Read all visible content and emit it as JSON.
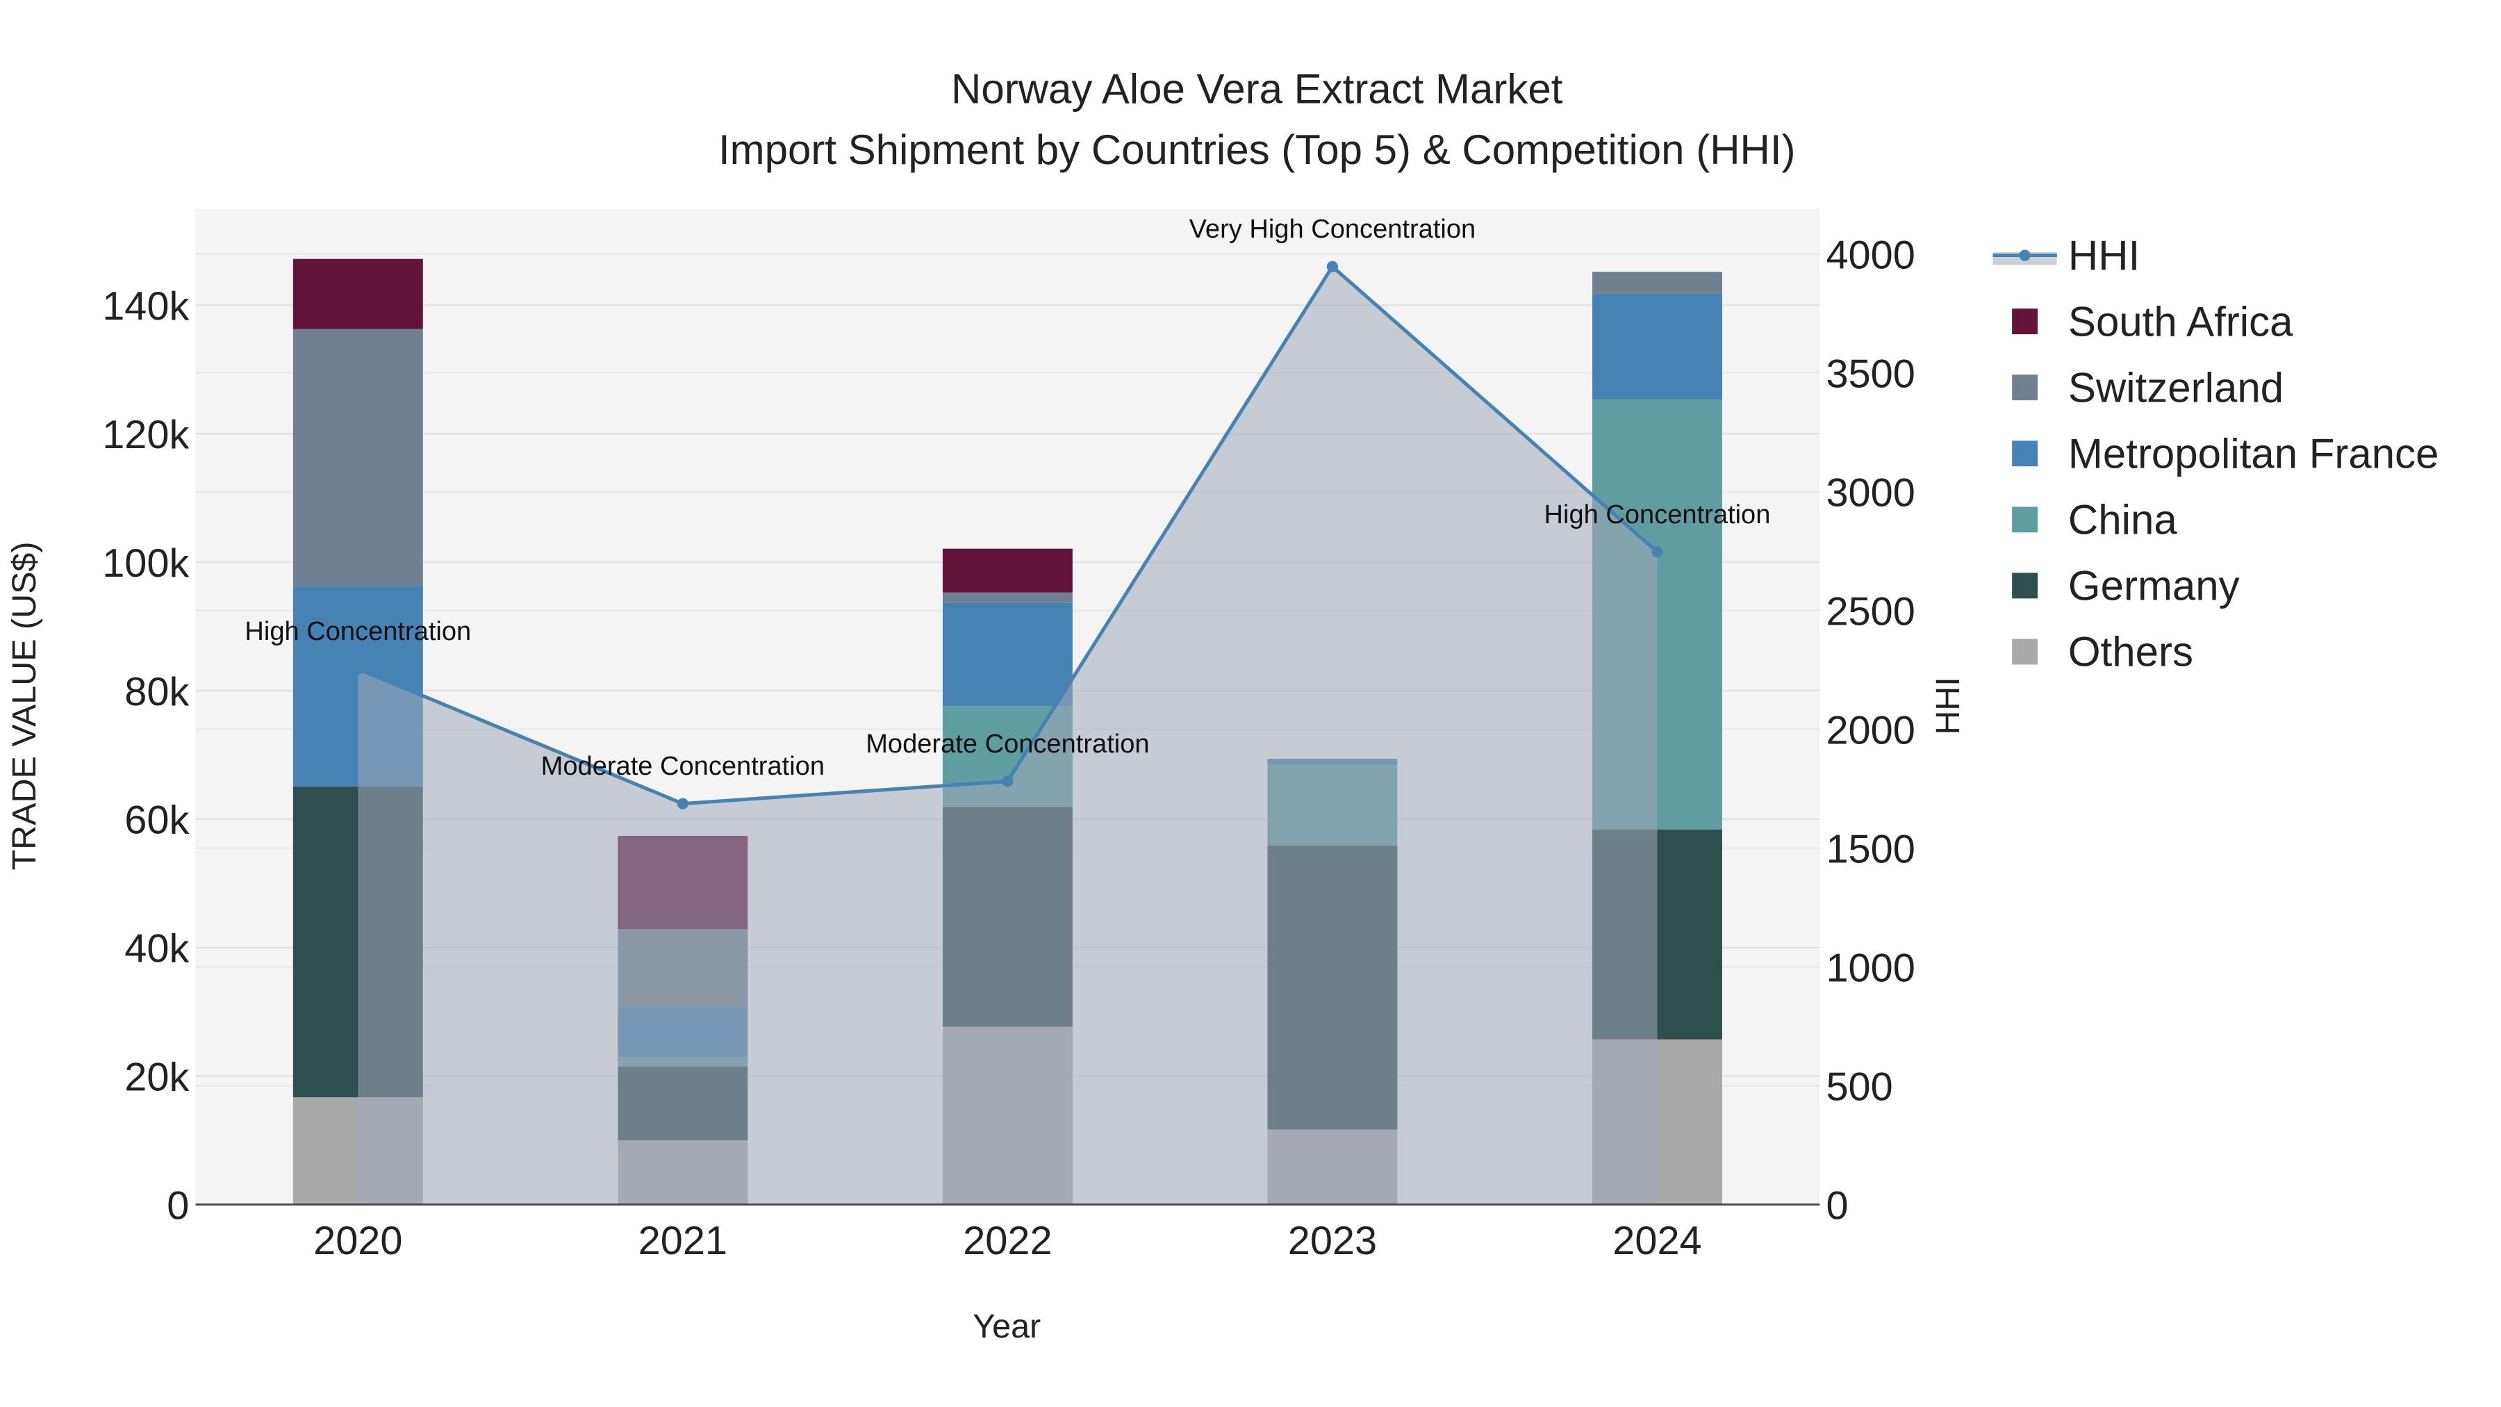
{
  "chart_data": {
    "type": "bar",
    "title": "Norway Aloe Vera Extract Market",
    "subtitle": "Import Shipment by Countries (Top 5) & Competition (HHI)",
    "xlabel": "Year",
    "ylabel": "TRADE VALUE (US$)",
    "y2label": "HHI",
    "categories": [
      "2020",
      "2021",
      "2022",
      "2023",
      "2024"
    ],
    "ylim": [
      0,
      155000
    ],
    "y2lim": [
      0,
      4190
    ],
    "yticks": [
      0,
      20000,
      40000,
      60000,
      80000,
      100000,
      120000,
      140000
    ],
    "ytick_labels": [
      "0",
      "20k",
      "40k",
      "60k",
      "80k",
      "100k",
      "120k",
      "140k"
    ],
    "y2ticks": [
      0,
      500,
      1000,
      1500,
      2000,
      2500,
      3000,
      3500,
      4000
    ],
    "y2tick_labels": [
      "0",
      "500",
      "1000",
      "1500",
      "2000",
      "2500",
      "3000",
      "3500",
      "4000"
    ],
    "stacked": true,
    "series": [
      {
        "name": "Others",
        "color": "#a9a9a9",
        "values": [
          16700,
          10000,
          27700,
          11700,
          25700
        ]
      },
      {
        "name": "Germany",
        "color": "#2f4f4f",
        "values": [
          48400,
          11500,
          34200,
          44200,
          32700
        ]
      },
      {
        "name": "China",
        "color": "#5f9ea0",
        "values": [
          0,
          1500,
          15700,
          12500,
          66900
        ]
      },
      {
        "name": "Metropolitan France",
        "color": "#4682b4",
        "values": [
          31200,
          7700,
          16100,
          1000,
          16500
        ]
      },
      {
        "name": "Switzerland",
        "color": "#708090",
        "values": [
          40000,
          12200,
          1600,
          0,
          3400
        ]
      },
      {
        "name": "South Africa",
        "color": "#621538",
        "values": [
          10900,
          14500,
          6800,
          0,
          0
        ]
      }
    ],
    "line": {
      "name": "HHI",
      "color": "#4682b4",
      "axis": "right",
      "values": [
        2254,
        1687,
        1781,
        3947,
        2746
      ],
      "annotations": [
        "High Concentration",
        "Moderate Concentration",
        "Moderate Concentration",
        "Very High Concentration",
        "High Concentration"
      ]
    },
    "legend_order": [
      "HHI",
      "South Africa",
      "Switzerland",
      "Metropolitan France",
      "China",
      "Germany",
      "Others"
    ],
    "legend_position": "right",
    "grid": true
  }
}
